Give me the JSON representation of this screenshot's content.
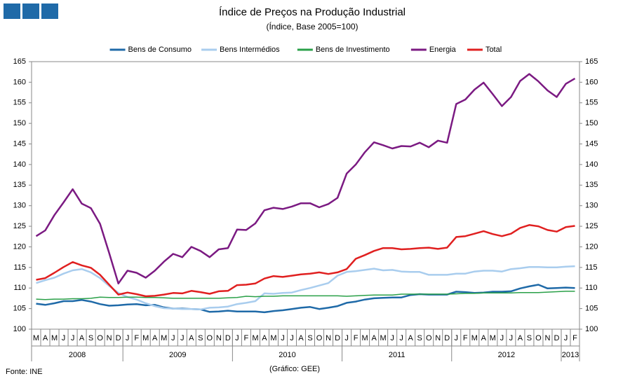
{
  "chart_data": {
    "type": "line",
    "title": "Índice de Preços na Produção Industrial",
    "subtitle": "(Índice, Base 2005=100)",
    "source": "Fonte: INE",
    "credit": "(Gráfico: GEE)",
    "categories": [
      "M",
      "A",
      "M",
      "J",
      "J",
      "A",
      "S",
      "O",
      "N",
      "D",
      "J",
      "F",
      "M",
      "A",
      "M",
      "J",
      "J",
      "A",
      "S",
      "O",
      "N",
      "D",
      "J",
      "F",
      "M",
      "A",
      "M",
      "J",
      "J",
      "A",
      "S",
      "O",
      "N",
      "D",
      "J",
      "F",
      "M",
      "A",
      "M",
      "J",
      "J",
      "A",
      "S",
      "O",
      "N",
      "D",
      "J",
      "F",
      "M",
      "A",
      "M",
      "J",
      "J",
      "A",
      "S",
      "O",
      "N",
      "D",
      "J",
      "F"
    ],
    "category_years": [
      "2008",
      "2008",
      "2008",
      "2008",
      "2008",
      "2008",
      "2008",
      "2008",
      "2008",
      "2008",
      "2009",
      "2009",
      "2009",
      "2009",
      "2009",
      "2009",
      "2009",
      "2009",
      "2009",
      "2009",
      "2009",
      "2009",
      "2010",
      "2010",
      "2010",
      "2010",
      "2010",
      "2010",
      "2010",
      "2010",
      "2010",
      "2010",
      "2010",
      "2010",
      "2011",
      "2011",
      "2011",
      "2011",
      "2011",
      "2011",
      "2011",
      "2011",
      "2011",
      "2011",
      "2011",
      "2011",
      "2012",
      "2012",
      "2012",
      "2012",
      "2012",
      "2012",
      "2012",
      "2012",
      "2012",
      "2012",
      "2012",
      "2012",
      "2013",
      "2013"
    ],
    "ylim": [
      100,
      165
    ],
    "yticks": [
      100,
      105,
      110,
      115,
      120,
      125,
      130,
      135,
      140,
      145,
      150,
      155,
      160,
      165
    ],
    "y2lim": [
      100,
      165
    ],
    "y2ticks": [
      100,
      105,
      110,
      115,
      120,
      125,
      130,
      135,
      140,
      145,
      150,
      155,
      160,
      165
    ],
    "legend": "top",
    "series": [
      {
        "name": "Bens de Consumo",
        "color": "#1f6aa8",
        "values": [
          106.2,
          105.9,
          106.3,
          106.8,
          106.8,
          107.1,
          106.7,
          106.1,
          105.7,
          105.8,
          106,
          106.1,
          105.8,
          105.9,
          105.3,
          105,
          105,
          104.9,
          104.8,
          104.2,
          104.3,
          104.5,
          104.3,
          104.3,
          104.3,
          104.1,
          104.4,
          104.6,
          104.9,
          105.2,
          105.4,
          104.9,
          105.2,
          105.6,
          106.4,
          106.7,
          107.2,
          107.5,
          107.6,
          107.7,
          107.7,
          108.3,
          108.5,
          108.4,
          108.4,
          108.4,
          109.1,
          109,
          108.8,
          108.9,
          109.1,
          109.1,
          109.2,
          109.9,
          110.4,
          110.8,
          109.9,
          110,
          110.1,
          110
        ]
      },
      {
        "name": "Bens Intermédios",
        "color": "#a9cdee",
        "values": [
          111.2,
          111.9,
          112.5,
          113.5,
          114.3,
          114.6,
          113.8,
          112.4,
          110.5,
          108.8,
          107.8,
          107.2,
          106.3,
          105.6,
          105.1,
          105,
          104.9,
          104.9,
          104.8,
          105.2,
          105.3,
          105.5,
          106.1,
          106.4,
          106.8,
          108.7,
          108.6,
          108.8,
          108.9,
          109.5,
          110,
          110.6,
          111.2,
          113,
          113.9,
          114.1,
          114.4,
          114.7,
          114.3,
          114.4,
          114,
          113.9,
          113.9,
          113.2,
          113.2,
          113.2,
          113.5,
          113.5,
          114,
          114.2,
          114.2,
          114,
          114.6,
          114.8,
          115.1,
          115.1,
          115,
          115,
          115.2,
          115.3
        ]
      },
      {
        "name": "Bens de Investimento",
        "color": "#2aa048",
        "values": [
          107.3,
          107.2,
          107.3,
          107.3,
          107.4,
          107.4,
          107.5,
          107.8,
          107.7,
          107.7,
          107.8,
          107.8,
          107.7,
          107.7,
          107.6,
          107.5,
          107.5,
          107.5,
          107.5,
          107.5,
          107.5,
          107.6,
          107.7,
          108,
          107.9,
          108,
          108,
          108.1,
          108.1,
          108.1,
          108.1,
          108.1,
          108.1,
          108.1,
          108,
          108.1,
          108.2,
          108.3,
          108.3,
          108.3,
          108.5,
          108.5,
          108.5,
          108.5,
          108.5,
          108.5,
          108.6,
          108.7,
          108.7,
          108.8,
          108.8,
          108.8,
          108.8,
          108.9,
          108.9,
          108.9,
          109,
          109.1,
          109.2,
          109.2
        ]
      },
      {
        "name": "Energia",
        "color": "#7b1a82",
        "values": [
          122.6,
          124,
          127.7,
          130.8,
          134,
          130.5,
          129.4,
          125.6,
          118.5,
          111.1,
          114.2,
          113.7,
          112.5,
          114.2,
          116.4,
          118.3,
          117.5,
          120,
          119,
          117.5,
          119.4,
          119.7,
          124.2,
          124.1,
          125.7,
          128.9,
          129.5,
          129.2,
          129.8,
          130.6,
          130.6,
          129.6,
          130.4,
          131.9,
          137.8,
          140,
          143,
          145.4,
          144.7,
          143.9,
          144.5,
          144.4,
          145.3,
          144.2,
          145.8,
          145.3,
          154.7,
          155.8,
          158.2,
          159.9,
          157.1,
          154.2,
          156.4,
          160.3,
          162,
          160.2,
          158,
          156.4,
          159.6,
          160.9
        ]
      },
      {
        "name": "Total",
        "color": "#e02020",
        "values": [
          112,
          112.4,
          113.7,
          115.1,
          116.3,
          115.5,
          114.9,
          113.2,
          110.8,
          108.4,
          108.9,
          108.5,
          108,
          108.1,
          108.4,
          108.8,
          108.7,
          109.3,
          109,
          108.6,
          109.2,
          109.3,
          110.7,
          110.8,
          111.1,
          112.3,
          112.9,
          112.7,
          113,
          113.3,
          113.5,
          113.8,
          113.4,
          113.8,
          114.6,
          117.1,
          118,
          119,
          119.7,
          119.7,
          119.4,
          119.5,
          119.7,
          119.8,
          119.5,
          119.8,
          122.4,
          122.6,
          123.2,
          123.8,
          123.1,
          122.6,
          123.2,
          124.6,
          125.3,
          125,
          124.1,
          123.7,
          124.8,
          125.1
        ]
      }
    ]
  }
}
